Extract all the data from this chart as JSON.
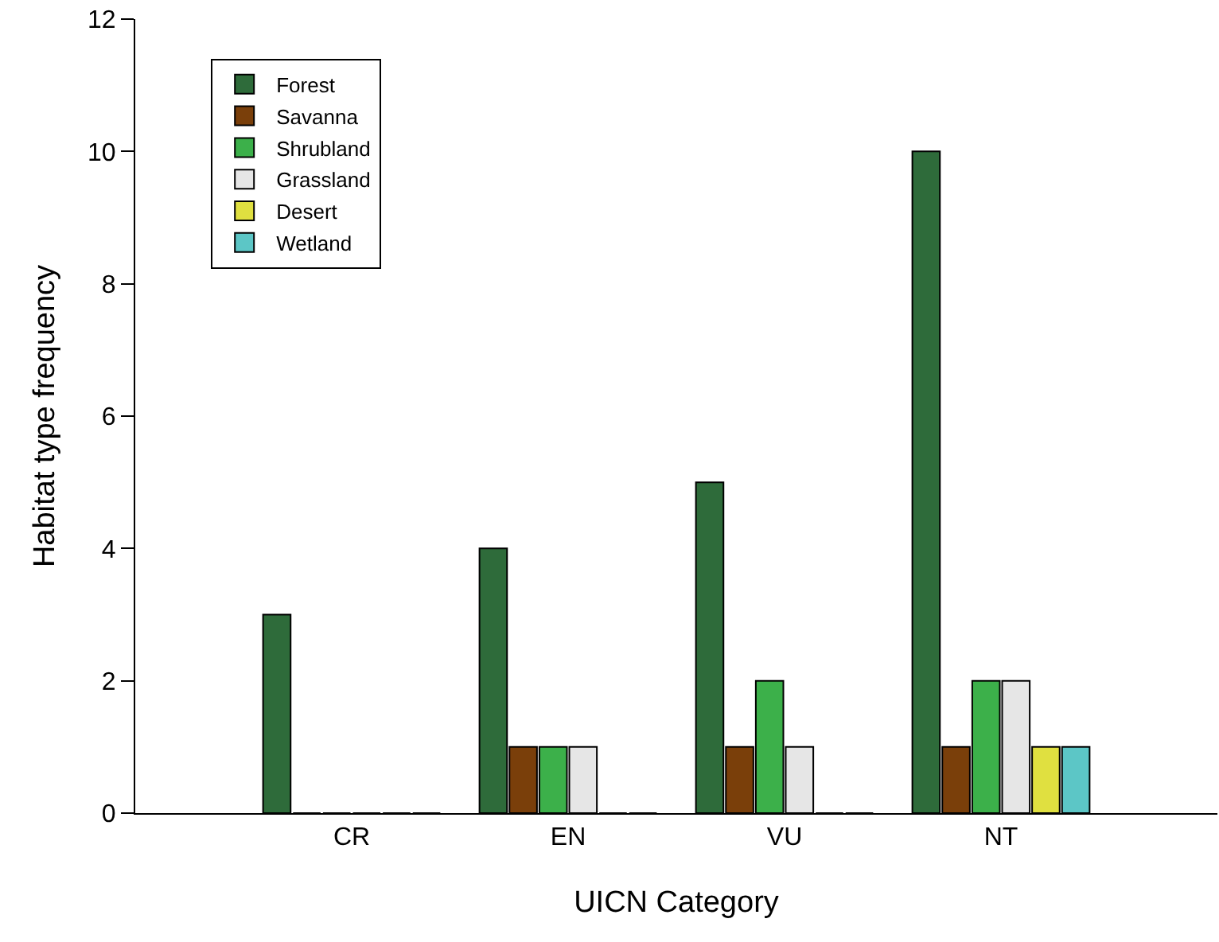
{
  "chart_data": {
    "type": "bar",
    "xlabel": "UICN Category",
    "ylabel": "Habitat type frequency",
    "categories": [
      "CR",
      "EN",
      "VU",
      "NT"
    ],
    "series": [
      {
        "name": "Forest",
        "color": "#2e6b3a",
        "values": [
          3,
          4,
          5,
          10
        ]
      },
      {
        "name": "Savanna",
        "color": "#7a3f0a",
        "values": [
          0,
          1,
          1,
          1
        ]
      },
      {
        "name": "Shrubland",
        "color": "#3cb04a",
        "values": [
          0,
          1,
          2,
          2
        ]
      },
      {
        "name": "Grassland",
        "color": "#e6e6e6",
        "values": [
          0,
          1,
          1,
          2
        ]
      },
      {
        "name": "Desert",
        "color": "#e0e040",
        "values": [
          0,
          0,
          0,
          1
        ]
      },
      {
        "name": "Wetland",
        "color": "#5cc6c6",
        "values": [
          0,
          0,
          0,
          1
        ]
      }
    ],
    "ylim": [
      0,
      12
    ],
    "yticks": [
      0,
      2,
      4,
      6,
      8,
      10,
      12
    ],
    "grid": false,
    "legend": "top left"
  }
}
